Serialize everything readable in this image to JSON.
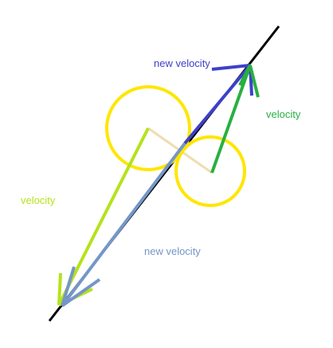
{
  "labels": {
    "top_new_velocity": "new velocity",
    "right_velocity": "velocity",
    "left_velocity": "velocity",
    "bottom_new_velocity": "new velocity"
  },
  "colors": {
    "background": "#ffffff",
    "collision_line": "#000000",
    "circle": "#ffe600",
    "center_link": "#efdcb0",
    "dark_blue": "#3d40c8",
    "green": "#28b040",
    "lime": "#b5e21c",
    "steel_blue": "#7596c8"
  }
}
